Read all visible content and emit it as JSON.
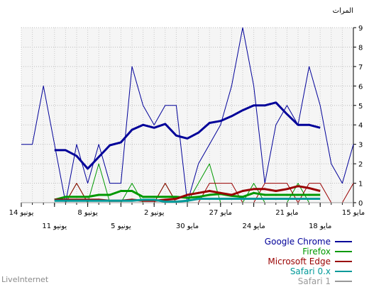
{
  "chart_data": {
    "type": "line",
    "ylabel": "المرات",
    "ylim": [
      0,
      9
    ],
    "y_ticks": [
      0,
      1,
      2,
      3,
      4,
      5,
      6,
      7,
      8,
      9
    ],
    "grid": true,
    "legend_position": "bottom-right",
    "x_order": "right-to-left (15 مايو at right, 14 يونيو at left)",
    "x_ticks_top": [
      {
        "day": 15,
        "label": "15 مايو"
      },
      {
        "day": 21,
        "label": "21 مايو"
      },
      {
        "day": 27,
        "label": "27 مايو"
      },
      {
        "day": 33,
        "label": "2 يونيو"
      },
      {
        "day": 39,
        "label": "8 يونيو"
      },
      {
        "day": 45,
        "label": "14 يونيو"
      }
    ],
    "x_ticks_bottom": [
      {
        "day": 18,
        "label": "18 مايو"
      },
      {
        "day": 24,
        "label": "24 مايو"
      },
      {
        "day": 30,
        "label": "30 مايو"
      },
      {
        "day": 36,
        "label": "5 يونيو"
      },
      {
        "day": 42,
        "label": "11 يونيو"
      }
    ],
    "days": [
      15,
      16,
      17,
      18,
      19,
      20,
      21,
      22,
      23,
      24,
      25,
      26,
      27,
      28,
      29,
      30,
      31,
      32,
      33,
      34,
      35,
      36,
      37,
      38,
      39,
      40,
      41,
      42,
      43,
      44,
      45
    ],
    "series": [
      {
        "name": "Google Chrome",
        "color": "#000099",
        "width": 1,
        "values": [
          3,
          1,
          2,
          5,
          7,
          4,
          5,
          4,
          1,
          6,
          9,
          6,
          4,
          3,
          2,
          0,
          5,
          5,
          4,
          5,
          7,
          1,
          1,
          3,
          1,
          3,
          0,
          3,
          6,
          3,
          3
        ]
      },
      {
        "name": "Google Chrome",
        "color": "#000099",
        "width": 3,
        "role": "moving-average",
        "start_day": 18,
        "values": [
          3.85,
          4.0,
          4.0,
          4.55,
          5.15,
          5.0,
          5.0,
          4.75,
          4.45,
          4.2,
          4.1,
          3.6,
          3.3,
          3.45,
          4.05,
          3.85,
          4.0,
          3.75,
          3.1,
          2.95,
          2.35,
          1.75,
          2.4,
          2.7,
          2.7
        ]
      },
      {
        "name": "Firefox",
        "color": "#009900",
        "width": 1,
        "values": [
          0,
          0,
          0,
          0,
          0,
          1,
          0,
          0,
          0,
          1,
          0,
          0,
          0,
          2,
          1,
          0,
          0,
          1,
          0,
          0,
          1,
          0,
          0,
          2,
          0,
          1,
          0,
          0,
          0,
          0,
          0
        ]
      },
      {
        "name": "Firefox",
        "color": "#009900",
        "width": 3,
        "role": "moving-average",
        "start_day": 18,
        "values": [
          0.4,
          0.4,
          0.4,
          0.4,
          0.4,
          0.4,
          0.5,
          0.3,
          0.35,
          0.45,
          0.4,
          0.3,
          0.25,
          0.3,
          0.3,
          0.3,
          0.3,
          0.6,
          0.6,
          0.4,
          0.4,
          0.3,
          0.3,
          0.3,
          0.15
        ]
      },
      {
        "name": "Microsoft Edge",
        "color": "#990000",
        "width": 1,
        "values": [
          1,
          0,
          0,
          1,
          1,
          0,
          1,
          1,
          1,
          0,
          0,
          1,
          1,
          1,
          0,
          0,
          0,
          1,
          0,
          0,
          0,
          0,
          0,
          0,
          0,
          1,
          0,
          0,
          0,
          0,
          0
        ]
      },
      {
        "name": "Microsoft Edge",
        "color": "#990000",
        "width": 3,
        "role": "moving-average",
        "start_day": 18,
        "values": [
          0.6,
          0.75,
          0.85,
          0.7,
          0.6,
          0.7,
          0.7,
          0.6,
          0.4,
          0.5,
          0.6,
          0.5,
          0.4,
          0.2,
          0.15,
          0.1,
          0.1,
          0.15,
          0.1,
          0.1,
          0.15,
          0.15,
          0.15,
          0.15,
          0.15
        ]
      },
      {
        "name": "Safari 0.x",
        "color": "#009999",
        "width": 1,
        "values": [
          0,
          0,
          0,
          0,
          0,
          0,
          0,
          0,
          0,
          0,
          0,
          0,
          0,
          0,
          0,
          0,
          0,
          0,
          0,
          0,
          0,
          0,
          0,
          0,
          0,
          0,
          0,
          0,
          0,
          0,
          0
        ]
      },
      {
        "name": "Safari 0.x",
        "color": "#009999",
        "width": 3,
        "role": "moving-average",
        "start_day": 18,
        "values": [
          0.2,
          0.2,
          0.2,
          0.2,
          0.2,
          0.2,
          0.2,
          0.2,
          0.2,
          0.2,
          0.2,
          0.2,
          0.1,
          0.05,
          0.05,
          0.15,
          0.15,
          0.1,
          0.1,
          0.1,
          0.1,
          0.1,
          0.1,
          0.1,
          0.1
        ]
      },
      {
        "name": "Safari 1",
        "color": "#999999",
        "width": 1,
        "values": [
          0,
          0,
          0,
          0,
          0,
          0,
          0,
          0,
          0,
          0,
          0,
          0,
          0,
          0,
          0,
          0,
          0,
          0,
          0,
          0,
          0,
          0,
          0,
          0,
          0,
          0,
          0,
          0,
          0,
          0,
          0
        ]
      }
    ],
    "legend": [
      {
        "label": "Google Chrome",
        "color": "#000099"
      },
      {
        "label": "Firefox",
        "color": "#009900"
      },
      {
        "label": "Microsoft Edge",
        "color": "#990000"
      },
      {
        "label": "Safari 0.x",
        "color": "#009999"
      },
      {
        "label": "Safari 1",
        "color": "#999999"
      }
    ]
  },
  "footer": {
    "text": "LiveInternet"
  }
}
